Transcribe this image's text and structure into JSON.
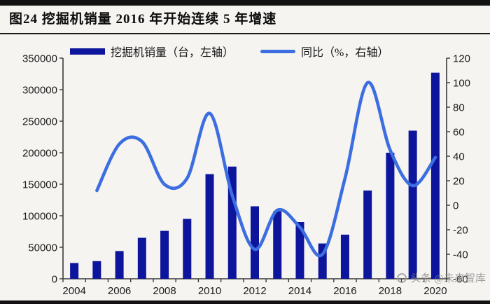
{
  "header": {
    "title": "图24 挖掘机销量 2016 年开始连续 5 年增速"
  },
  "watermark": {
    "text": "头条 @未来智库"
  },
  "colors": {
    "bar": "#0d159c",
    "line": "#3c6ee0",
    "axis": "#3a3a3a",
    "page_bg": "#f5f4f1",
    "frame_bar": "#121212"
  },
  "chart_data": {
    "type": "bar",
    "subtype": "bar+line combo, dual axis",
    "title": "图24 挖掘机销量 2016 年开始连续 5 年增速",
    "categories": [
      "2004",
      "2005",
      "2006",
      "2007",
      "2008",
      "2009",
      "2010",
      "2011",
      "2012",
      "2013",
      "2014",
      "2015",
      "2016",
      "2017",
      "2018",
      "2019",
      "2020"
    ],
    "series": [
      {
        "name": "挖掘机销量（台，左轴）",
        "type": "bar",
        "axis": "left",
        "color": "#0d159c",
        "values": [
          25000,
          28000,
          44000,
          65000,
          76000,
          95000,
          166000,
          178000,
          115000,
          107000,
          90000,
          56000,
          70000,
          140000,
          200000,
          235000,
          327000
        ]
      },
      {
        "name": "同比（%，右轴）",
        "type": "line",
        "axis": "right",
        "color": "#3c6ee0",
        "smooth": true,
        "x": [
          "2005",
          "2006",
          "2007",
          "2008",
          "2009",
          "2010",
          "2011",
          "2012",
          "2013",
          "2014",
          "2015",
          "2016",
          "2017",
          "2018",
          "2019",
          "2020"
        ],
        "values": [
          12,
          50,
          52,
          17,
          22,
          75,
          8,
          -36,
          -4,
          -18,
          -40,
          22,
          100,
          45,
          16,
          39
        ]
      }
    ],
    "left_axis": {
      "min": 0,
      "max": 350000,
      "tick_values": [
        0,
        50000,
        100000,
        150000,
        200000,
        250000,
        300000,
        350000
      ],
      "tick_labels": [
        "0",
        "50000",
        "100000",
        "150000",
        "200000",
        "250000",
        "300000",
        "350000"
      ]
    },
    "right_axis": {
      "min": -60,
      "max": 120,
      "tick_values": [
        -60,
        -40,
        -20,
        0,
        20,
        40,
        60,
        80,
        100,
        120
      ],
      "tick_labels": [
        "-60",
        "-40",
        "-20",
        "0",
        "20",
        "40",
        "60",
        "80",
        "100",
        "120"
      ]
    },
    "x_tick_labels": [
      "2004",
      "2006",
      "2008",
      "2010",
      "2012",
      "2014",
      "2016",
      "2018",
      "2020"
    ],
    "legend_position": "top",
    "grid": false
  }
}
